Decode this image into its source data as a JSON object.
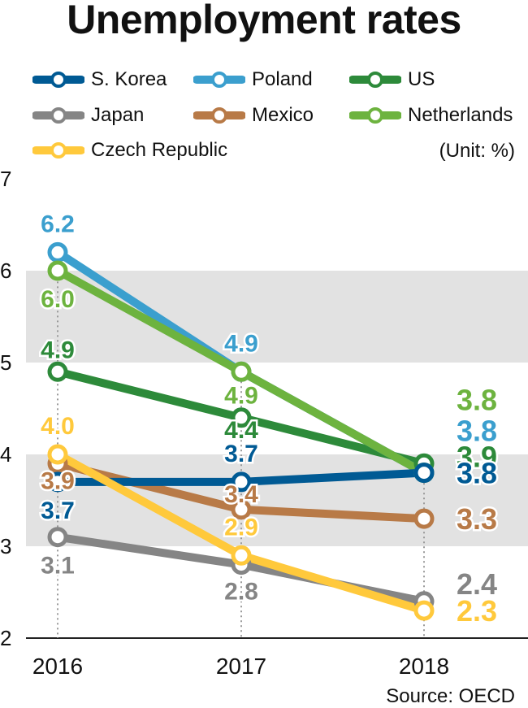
{
  "title": "Unemployment rates",
  "unit": "(Unit: %)",
  "source": "Source: OECD",
  "chart_data": {
    "type": "line",
    "title": "Unemployment rates",
    "x": [
      "2016",
      "2017",
      "2018"
    ],
    "ylim": [
      2,
      7
    ],
    "yticks": [
      "2",
      "3",
      "4",
      "5",
      "6",
      "7"
    ],
    "grid": "alternating horizontal bands",
    "legend_position": "top",
    "series": [
      {
        "name": "S. Korea",
        "color": "#005A94",
        "values": [
          3.7,
          3.7,
          3.8
        ],
        "labels": [
          "3.7",
          "3.7",
          "3.8"
        ]
      },
      {
        "name": "Poland",
        "color": "#3B9FCE",
        "values": [
          6.2,
          4.9,
          3.8
        ],
        "labels": [
          "6.2",
          "4.9",
          "3.8"
        ]
      },
      {
        "name": "US",
        "color": "#2D8A3A",
        "values": [
          4.9,
          4.4,
          3.9
        ],
        "labels": [
          "4.9",
          "4.4",
          "3.9"
        ]
      },
      {
        "name": "Japan",
        "color": "#858585",
        "values": [
          3.1,
          2.8,
          2.4
        ],
        "labels": [
          "3.1",
          "2.8",
          "2.4"
        ]
      },
      {
        "name": "Mexico",
        "color": "#B87A47",
        "values": [
          3.9,
          3.4,
          3.3
        ],
        "labels": [
          "3.9",
          "3.4",
          "3.3"
        ]
      },
      {
        "name": "Netherlands",
        "color": "#6DB33F",
        "values": [
          6.0,
          4.9,
          3.8
        ],
        "labels": [
          "6.0",
          "4.9",
          "3.8"
        ]
      },
      {
        "name": "Czech Republic",
        "color": "#FFC93C",
        "values": [
          4.0,
          2.9,
          2.3
        ],
        "labels": [
          "4.0",
          "2.9",
          "2.3"
        ]
      }
    ]
  }
}
